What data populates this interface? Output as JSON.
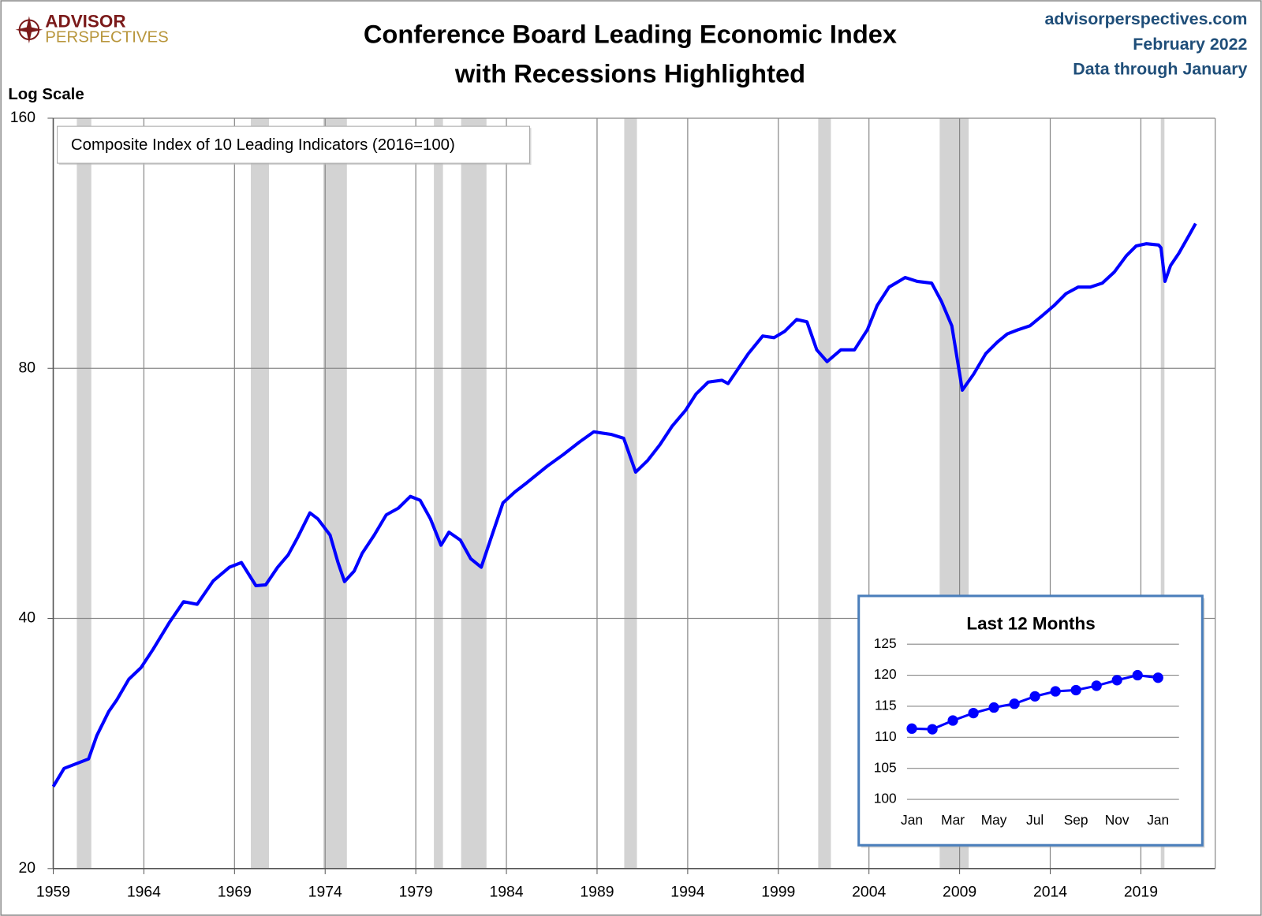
{
  "header": {
    "logo_top": "ADVISOR",
    "logo_bottom": "PERSPECTIVES",
    "site": "advisorperspectives.com",
    "date": "February 2022",
    "note": "Data through January"
  },
  "chart_data": [
    {
      "type": "line",
      "title": [
        "Conference Board Leading Economic Index",
        "with Recessions Highlighted"
      ],
      "ylabel": "Log Scale",
      "annotation": "Composite Index of 10 Leading Indicators (2016=100)",
      "log_scale": true,
      "grid": true,
      "color": "#0000ff",
      "recession_color": "#d3d3d3",
      "xlim": [
        1959,
        2023.1
      ],
      "xticks": [
        1959,
        1964,
        1969,
        1974,
        1979,
        1984,
        1989,
        1994,
        1999,
        2004,
        2009,
        2014,
        2019
      ],
      "ylim": [
        20,
        160
      ],
      "yticks": [
        20,
        40,
        80,
        160
      ],
      "recessions": [
        [
          1960.3,
          1961.1
        ],
        [
          1969.9,
          1970.9
        ],
        [
          1973.9,
          1975.2
        ],
        [
          1980.0,
          1980.5
        ],
        [
          1981.5,
          1982.9
        ],
        [
          1990.5,
          1991.2
        ],
        [
          2001.2,
          2001.9
        ],
        [
          2007.9,
          2009.5
        ],
        [
          2020.1,
          2020.3
        ]
      ],
      "x": [
        1959.0,
        1959.6,
        1960.95,
        1961.4,
        1962.06,
        1962.5,
        1963.17,
        1963.84,
        1964.5,
        1965.39,
        1966.19,
        1966.94,
        1967.83,
        1968.72,
        1969.38,
        1970.18,
        1970.72,
        1971.38,
        1971.96,
        1972.49,
        1973.16,
        1973.6,
        1974.27,
        1974.71,
        1975.07,
        1975.6,
        1976.04,
        1976.71,
        1977.37,
        1978.04,
        1978.7,
        1979.24,
        1979.81,
        1980.39,
        1980.83,
        1981.46,
        1982.03,
        1982.61,
        1983.14,
        1983.81,
        1984.47,
        1985.14,
        1986.25,
        1987.14,
        1988.02,
        1988.82,
        1989.8,
        1990.47,
        1991.13,
        1991.8,
        1992.46,
        1993.13,
        1993.88,
        1994.46,
        1995.13,
        1995.88,
        1996.23,
        1996.68,
        1997.34,
        1998.14,
        1998.76,
        1999.34,
        2000.01,
        2000.58,
        2001.12,
        2001.69,
        2002.45,
        2003.2,
        2003.91,
        2004.45,
        2005.11,
        2006.0,
        2006.66,
        2007.46,
        2008.0,
        2008.57,
        2009.15,
        2009.77,
        2010.44,
        2011.1,
        2011.63,
        2012.21,
        2012.88,
        2013.54,
        2014.21,
        2014.87,
        2015.54,
        2016.21,
        2016.87,
        2017.54,
        2018.2,
        2018.74,
        2019.31,
        2019.98,
        2020.11,
        2020.33,
        2020.64,
        2021.09,
        2021.67,
        2022.02
      ],
      "values": [
        25.1,
        26.4,
        27.1,
        28.9,
        30.9,
        31.9,
        33.8,
        34.9,
        36.7,
        39.5,
        41.9,
        41.6,
        44.4,
        46.1,
        46.7,
        43.8,
        43.9,
        46.1,
        47.7,
        50.1,
        53.6,
        52.7,
        50.4,
        46.7,
        44.3,
        45.6,
        47.9,
        50.4,
        53.3,
        54.3,
        56.1,
        55.5,
        52.7,
        49.0,
        50.8,
        49.7,
        47.2,
        46.1,
        49.9,
        55.1,
        56.8,
        58.3,
        61.0,
        63.0,
        65.2,
        67.1,
        66.6,
        65.9,
        60.0,
        62.0,
        64.7,
        68.1,
        71.2,
        74.5,
        77.0,
        77.4,
        76.7,
        79.3,
        83.3,
        87.5,
        87.1,
        88.6,
        91.6,
        91.0,
        84.2,
        81.5,
        84.2,
        84.2,
        89.0,
        95.2,
        100.2,
        102.9,
        101.8,
        101.3,
        96.3,
        90.0,
        75.3,
        78.7,
        83.3,
        86.1,
        88.0,
        89.0,
        90.0,
        92.5,
        95.2,
        98.4,
        100.2,
        100.2,
        101.3,
        104.5,
        109.3,
        112.3,
        113.0,
        112.6,
        111.7,
        101.8,
        106.4,
        110.0,
        115.8,
        119.5
      ]
    },
    {
      "type": "line",
      "title": "Last 12 Months",
      "grid": true,
      "color": "#0000ff",
      "markers": true,
      "categories": [
        "Jan",
        null,
        "Mar",
        null,
        "May",
        null,
        "Jul",
        null,
        "Sep",
        null,
        "Nov",
        null,
        "Jan"
      ],
      "values": [
        111.4,
        111.3,
        112.7,
        113.9,
        114.8,
        115.4,
        116.6,
        117.4,
        117.6,
        118.3,
        119.2,
        120.0,
        119.6
      ],
      "ylim": [
        100,
        125
      ],
      "yticks": [
        100,
        105,
        110,
        115,
        120,
        125
      ]
    }
  ]
}
